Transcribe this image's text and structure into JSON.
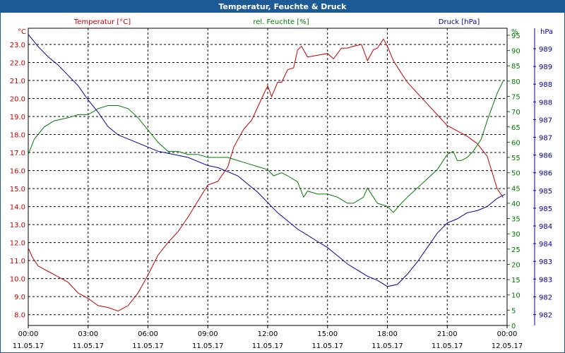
{
  "window": {
    "title": "Temperatur, Feuchte & Druck"
  },
  "colors": {
    "temperature": "#c00000",
    "humidity": "#007a00",
    "pressure": "#000099",
    "title_bar": "#1e5a96"
  },
  "chart_data": {
    "type": "line",
    "title": "Temperatur, Feuchte & Druck",
    "x_ticks": [
      {
        "time": "00:00",
        "date": "11.05.17"
      },
      {
        "time": "03:00",
        "date": "11.05.17"
      },
      {
        "time": "06:00",
        "date": "11.05.17"
      },
      {
        "time": "09:00",
        "date": "11.05.17"
      },
      {
        "time": "12:00",
        "date": "11.05.17"
      },
      {
        "time": "15:00",
        "date": "11.05.17"
      },
      {
        "time": "18:00",
        "date": "11.05.17"
      },
      {
        "time": "21:00",
        "date": "11.05.17"
      },
      {
        "time": "00:00",
        "date": "12.05.17"
      }
    ],
    "x_range_hours": [
      0,
      24
    ],
    "grid": true,
    "axes": {
      "temperature": {
        "series_label": "Temperatur [°C]",
        "unit": "°C",
        "side": "left",
        "ylim": [
          7.4,
          23.9
        ],
        "ticks": [
          "23.0",
          "22.0",
          "21.0",
          "20.0",
          "19.0",
          "18.0",
          "17.0",
          "16.0",
          "15.0",
          "14.0",
          "13.0",
          "12.0",
          "11.0",
          "10.0",
          "9.0",
          "8.0"
        ],
        "tick_values": [
          23,
          22,
          21,
          20,
          19,
          18,
          17,
          16,
          15,
          14,
          13,
          12,
          11,
          10,
          9,
          8
        ]
      },
      "humidity": {
        "series_label": "rel. Feuchte [%]",
        "unit": "%",
        "side": "right",
        "ylim": [
          0,
          97.3
        ],
        "ticks": [
          "95",
          "90",
          "85",
          "80",
          "75",
          "70",
          "65",
          "60",
          "55",
          "50",
          "45",
          "40",
          "35",
          "30",
          "25",
          "20",
          "15",
          "10",
          "5",
          "0"
        ],
        "tick_values": [
          95,
          90,
          85,
          80,
          75,
          70,
          65,
          60,
          55,
          50,
          45,
          40,
          35,
          30,
          25,
          20,
          15,
          10,
          5,
          0
        ]
      },
      "pressure": {
        "series_label": "Druck [hPa]",
        "unit": "hPa",
        "side": "right",
        "ticks": [
          "989",
          "989",
          "988",
          "988",
          "987",
          "987",
          "986",
          "986",
          "985",
          "985",
          "984",
          "984",
          "983",
          "983",
          "982",
          "982"
        ]
      }
    },
    "series": [
      {
        "name": "Temperatur [°C]",
        "axis": "temperature",
        "x": [
          0,
          0.2,
          0.5,
          1,
          1.5,
          2,
          2.5,
          3,
          3.5,
          4,
          4.5,
          5,
          5.5,
          6,
          6.5,
          7,
          7.5,
          8,
          8.5,
          9,
          9.5,
          10,
          10.3,
          10.8,
          11.2,
          11.7,
          12,
          12.2,
          12.5,
          12.7,
          13,
          13.3,
          13.5,
          13.7,
          14,
          14.5,
          15,
          15.3,
          15.7,
          16,
          16.3,
          16.7,
          17,
          17.3,
          17.5,
          17.8,
          18,
          18.3,
          18.7,
          19,
          19.5,
          20,
          20.5,
          21,
          21.5,
          22,
          22.5,
          23,
          23.5,
          23.8
        ],
        "values": [
          11.7,
          11.2,
          10.7,
          10.4,
          10.1,
          9.8,
          9.2,
          8.9,
          8.5,
          8.4,
          8.2,
          8.5,
          9.2,
          10.2,
          11.3,
          12.0,
          12.6,
          13.4,
          14.3,
          15.2,
          15.4,
          16.2,
          17.3,
          18.3,
          18.8,
          20.0,
          20.7,
          20.1,
          20.9,
          20.9,
          21.6,
          21.7,
          22.7,
          22.9,
          22.3,
          22.4,
          22.5,
          22.2,
          22.8,
          22.8,
          22.9,
          23.0,
          22.1,
          22.7,
          22.8,
          23.3,
          22.9,
          22.1,
          21.4,
          20.9,
          20.3,
          19.7,
          19.1,
          18.5,
          18.2,
          17.9,
          17.5,
          16.8,
          15.0,
          14.5
        ]
      },
      {
        "name": "rel. Feuchte [%]",
        "axis": "humidity",
        "x": [
          0,
          0.3,
          0.8,
          1.3,
          2,
          2.5,
          3,
          3.5,
          4,
          4.5,
          5,
          5.5,
          6,
          6.5,
          7,
          7.5,
          8,
          8.5,
          9,
          9.5,
          10,
          10.5,
          11,
          11.5,
          12,
          12.3,
          12.7,
          13,
          13.5,
          13.8,
          14,
          14.5,
          15,
          15.5,
          16,
          16.3,
          16.8,
          17,
          17.5,
          18,
          18.3,
          18.7,
          19,
          19.5,
          20,
          20.5,
          21,
          21.3,
          21.5,
          21.7,
          22,
          22.3,
          22.7,
          23,
          23.5,
          23.8
        ],
        "values": [
          56,
          61,
          65,
          67,
          68,
          69,
          69,
          71,
          72,
          72,
          71,
          68,
          64,
          60,
          57,
          57,
          56,
          56,
          55,
          55,
          55,
          54,
          53,
          52,
          51,
          49,
          50,
          49,
          47,
          42,
          44,
          43,
          43,
          42,
          40,
          40,
          42,
          45,
          40,
          39,
          37,
          40,
          42,
          45,
          48,
          51,
          56,
          57,
          54,
          54,
          55,
          57,
          61,
          67,
          76,
          80
        ]
      },
      {
        "name": "Druck [hPa]",
        "axis": "pressure",
        "x": [
          0,
          0.5,
          1,
          1.5,
          2,
          2.5,
          3,
          3.5,
          4,
          4.5,
          5,
          5.5,
          6,
          6.5,
          7,
          7.5,
          8,
          8.5,
          9,
          9.5,
          10,
          10.5,
          11,
          11.5,
          12,
          12.5,
          13,
          13.5,
          14,
          14.5,
          15,
          15.5,
          16,
          16.5,
          17,
          17.5,
          18,
          18.5,
          19,
          19.5,
          20,
          20.5,
          21,
          21.5,
          22,
          22.5,
          23,
          23.5,
          23.9
        ],
        "values": [
          989.2,
          988.9,
          988.65,
          988.45,
          988.2,
          987.95,
          987.6,
          987.3,
          986.95,
          986.75,
          986.65,
          986.55,
          986.45,
          986.35,
          986.3,
          986.25,
          986.2,
          986.1,
          986.0,
          985.95,
          985.85,
          985.75,
          985.55,
          985.35,
          985.1,
          984.85,
          984.65,
          984.45,
          984.3,
          984.15,
          984.0,
          983.8,
          983.6,
          983.45,
          983.3,
          983.2,
          983.05,
          983.1,
          983.35,
          983.65,
          984.0,
          984.35,
          984.6,
          984.7,
          984.85,
          984.9,
          985.0,
          985.2,
          985.3
        ]
      }
    ]
  }
}
